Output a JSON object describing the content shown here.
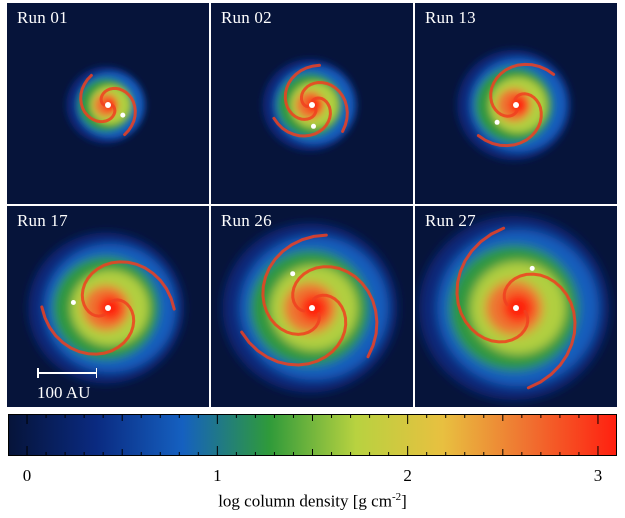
{
  "figure": {
    "panels": [
      {
        "label": "Run 01",
        "disc_size": 0.42,
        "arms": 2
      },
      {
        "label": "Run 02",
        "disc_size": 0.5,
        "arms": 3
      },
      {
        "label": "Run 13",
        "disc_size": 0.6,
        "arms": 2
      },
      {
        "label": "Run 17",
        "disc_size": 0.82,
        "arms": 2
      },
      {
        "label": "Run 26",
        "disc_size": 0.92,
        "arms": 3
      },
      {
        "label": "Run 27",
        "disc_size": 1.0,
        "arms": 2
      }
    ],
    "scale_bar_label": "100 AU",
    "colorbar": {
      "tick_labels": [
        "0",
        "1",
        "2",
        "3"
      ],
      "tick_values": [
        0,
        1,
        2,
        3
      ],
      "range": [
        -0.1,
        3.1
      ],
      "label": "log column density [g cm",
      "label_superscript": "-2",
      "label_end": "]",
      "colors": [
        "#06143a",
        "#0a2a80",
        "#1560c0",
        "#2f9a3a",
        "#b8d240",
        "#e8c040",
        "#f07030",
        "#ff2010"
      ]
    }
  }
}
